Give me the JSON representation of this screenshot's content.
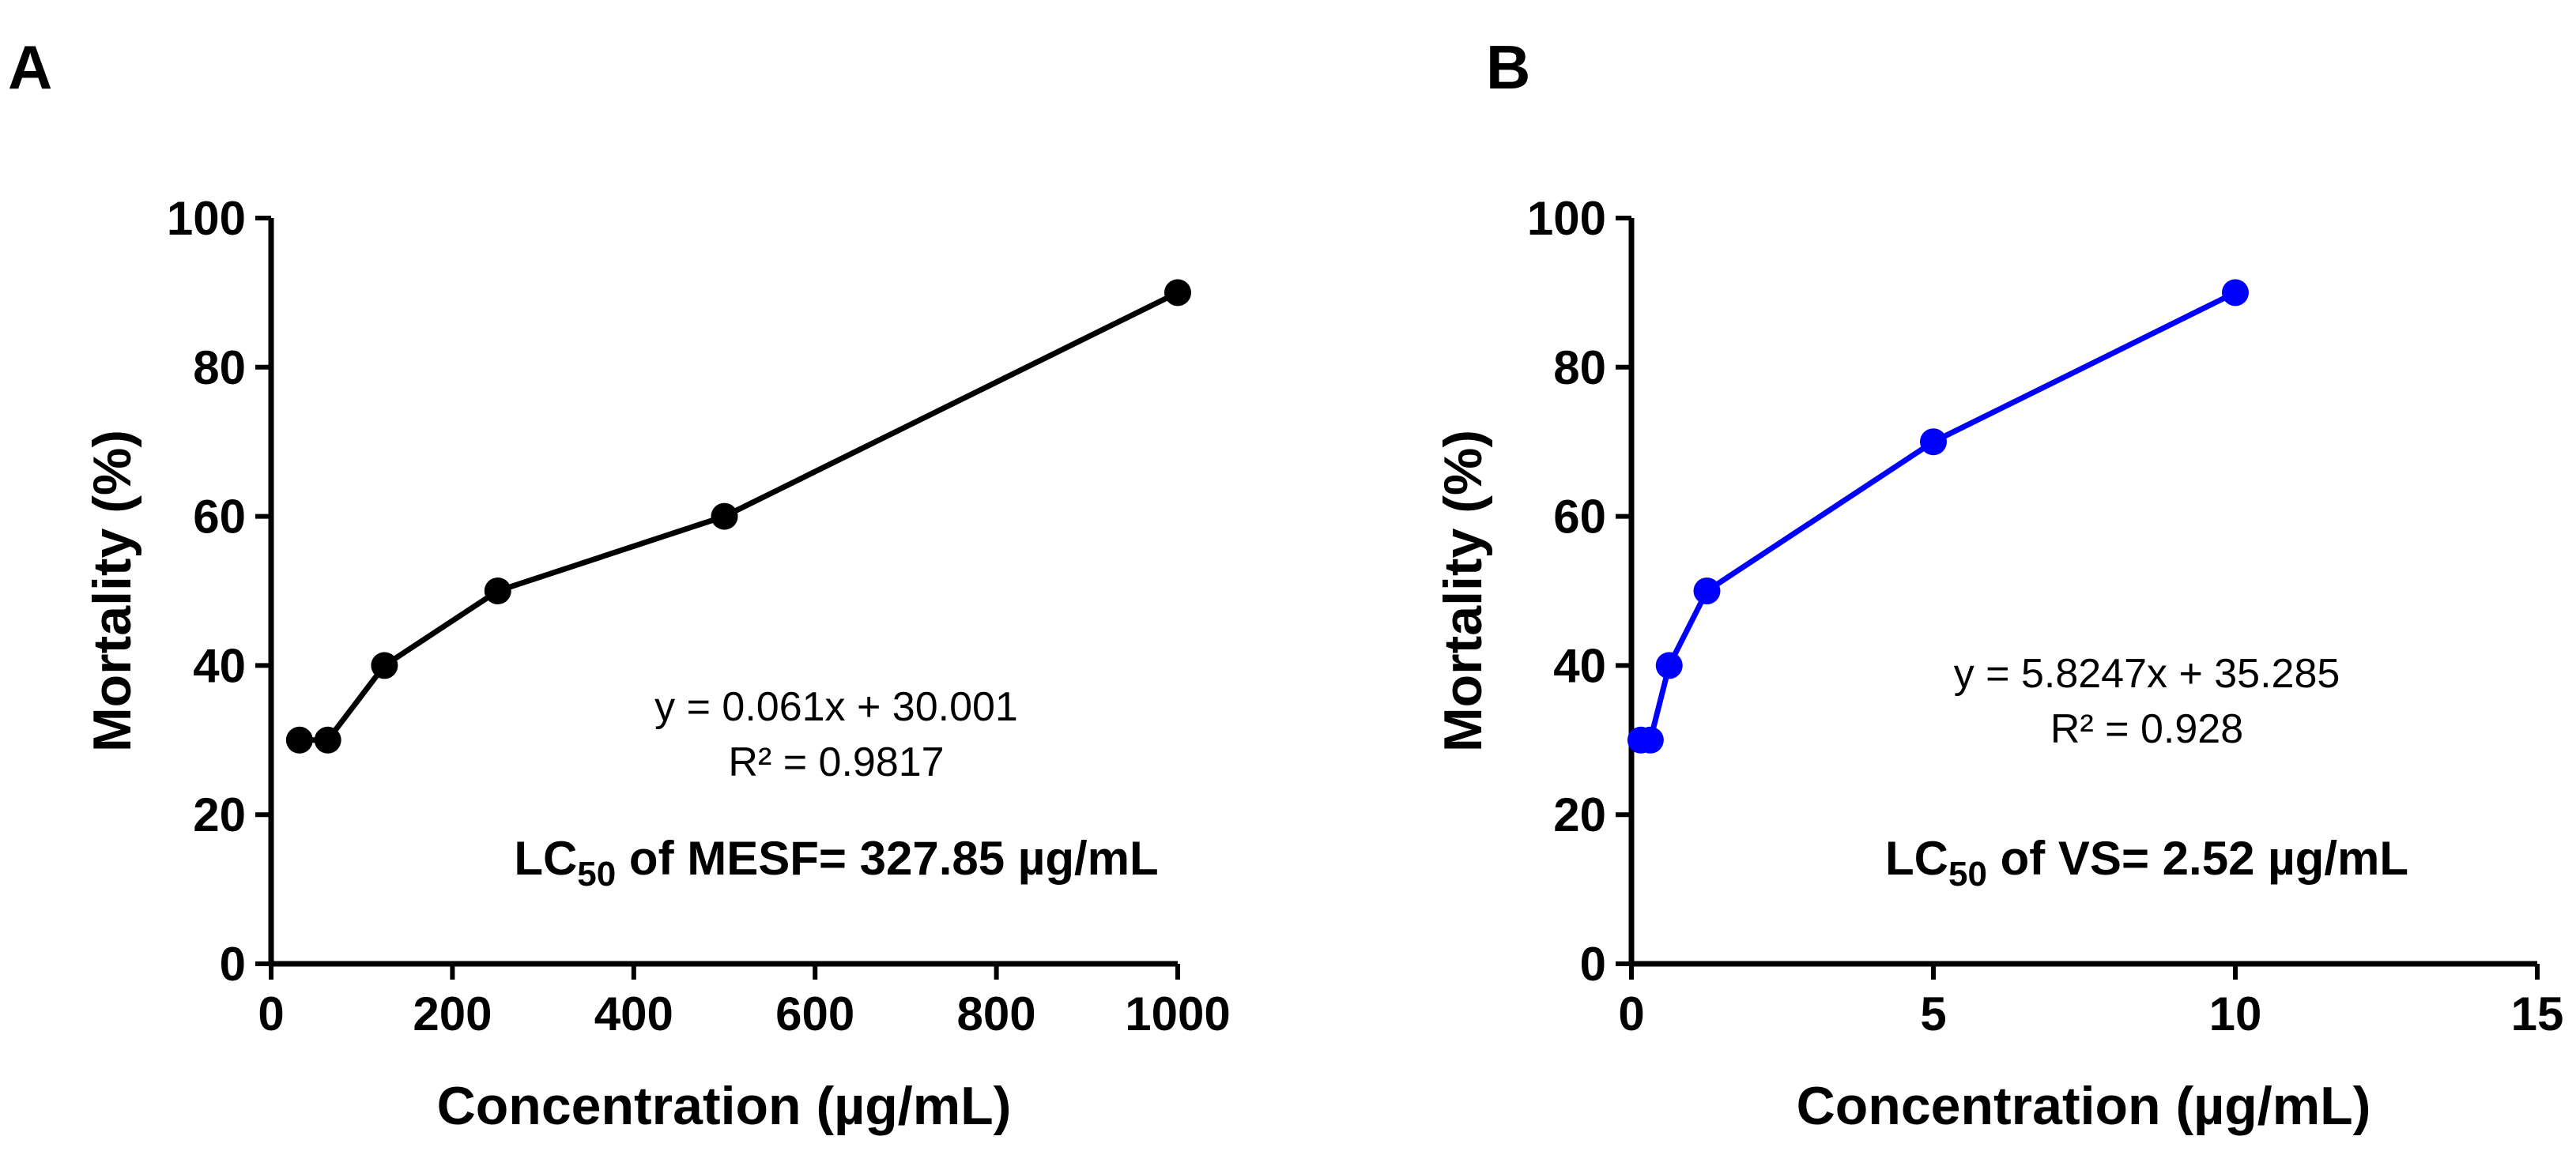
{
  "chart_data": [
    {
      "panel_label": "A",
      "type": "line",
      "color": "#000000",
      "series": [
        {
          "name": "MESF",
          "x": [
            31.25,
            62.5,
            125,
            250,
            500,
            1000
          ],
          "y": [
            30,
            30,
            40,
            50,
            60,
            90
          ]
        }
      ],
      "xlim": [
        0,
        1000
      ],
      "ylim": [
        0,
        100
      ],
      "xticks": [
        0,
        200,
        400,
        600,
        800,
        1000
      ],
      "yticks": [
        0,
        20,
        40,
        60,
        80,
        100
      ],
      "xlabel": "Concentration (µg/mL)",
      "ylabel": "Mortality (%)",
      "equation": "y = 0.061x + 30.001",
      "r_squared": "R² = 0.9817",
      "lc50": {
        "prefix": "LC",
        "sub": "50",
        "text": " of MESF= 327.85 µg/mL"
      }
    },
    {
      "panel_label": "B",
      "type": "line",
      "color": "#0000ff",
      "series": [
        {
          "name": "VS",
          "x": [
            0.156,
            0.3125,
            0.625,
            1.25,
            5,
            10
          ],
          "y": [
            30,
            30,
            40,
            50,
            70,
            90
          ]
        }
      ],
      "xlim": [
        0,
        15
      ],
      "ylim": [
        0,
        100
      ],
      "xticks": [
        0,
        5,
        10,
        15
      ],
      "yticks": [
        0,
        20,
        40,
        60,
        80,
        100
      ],
      "xlabel": "Concentration (µg/mL)",
      "ylabel": "Mortality (%)",
      "equation": "y = 5.8247x + 35.285",
      "r_squared": "R² = 0.928",
      "lc50": {
        "prefix": "LC",
        "sub": "50",
        "text": " of VS= 2.52 µg/mL"
      }
    }
  ]
}
